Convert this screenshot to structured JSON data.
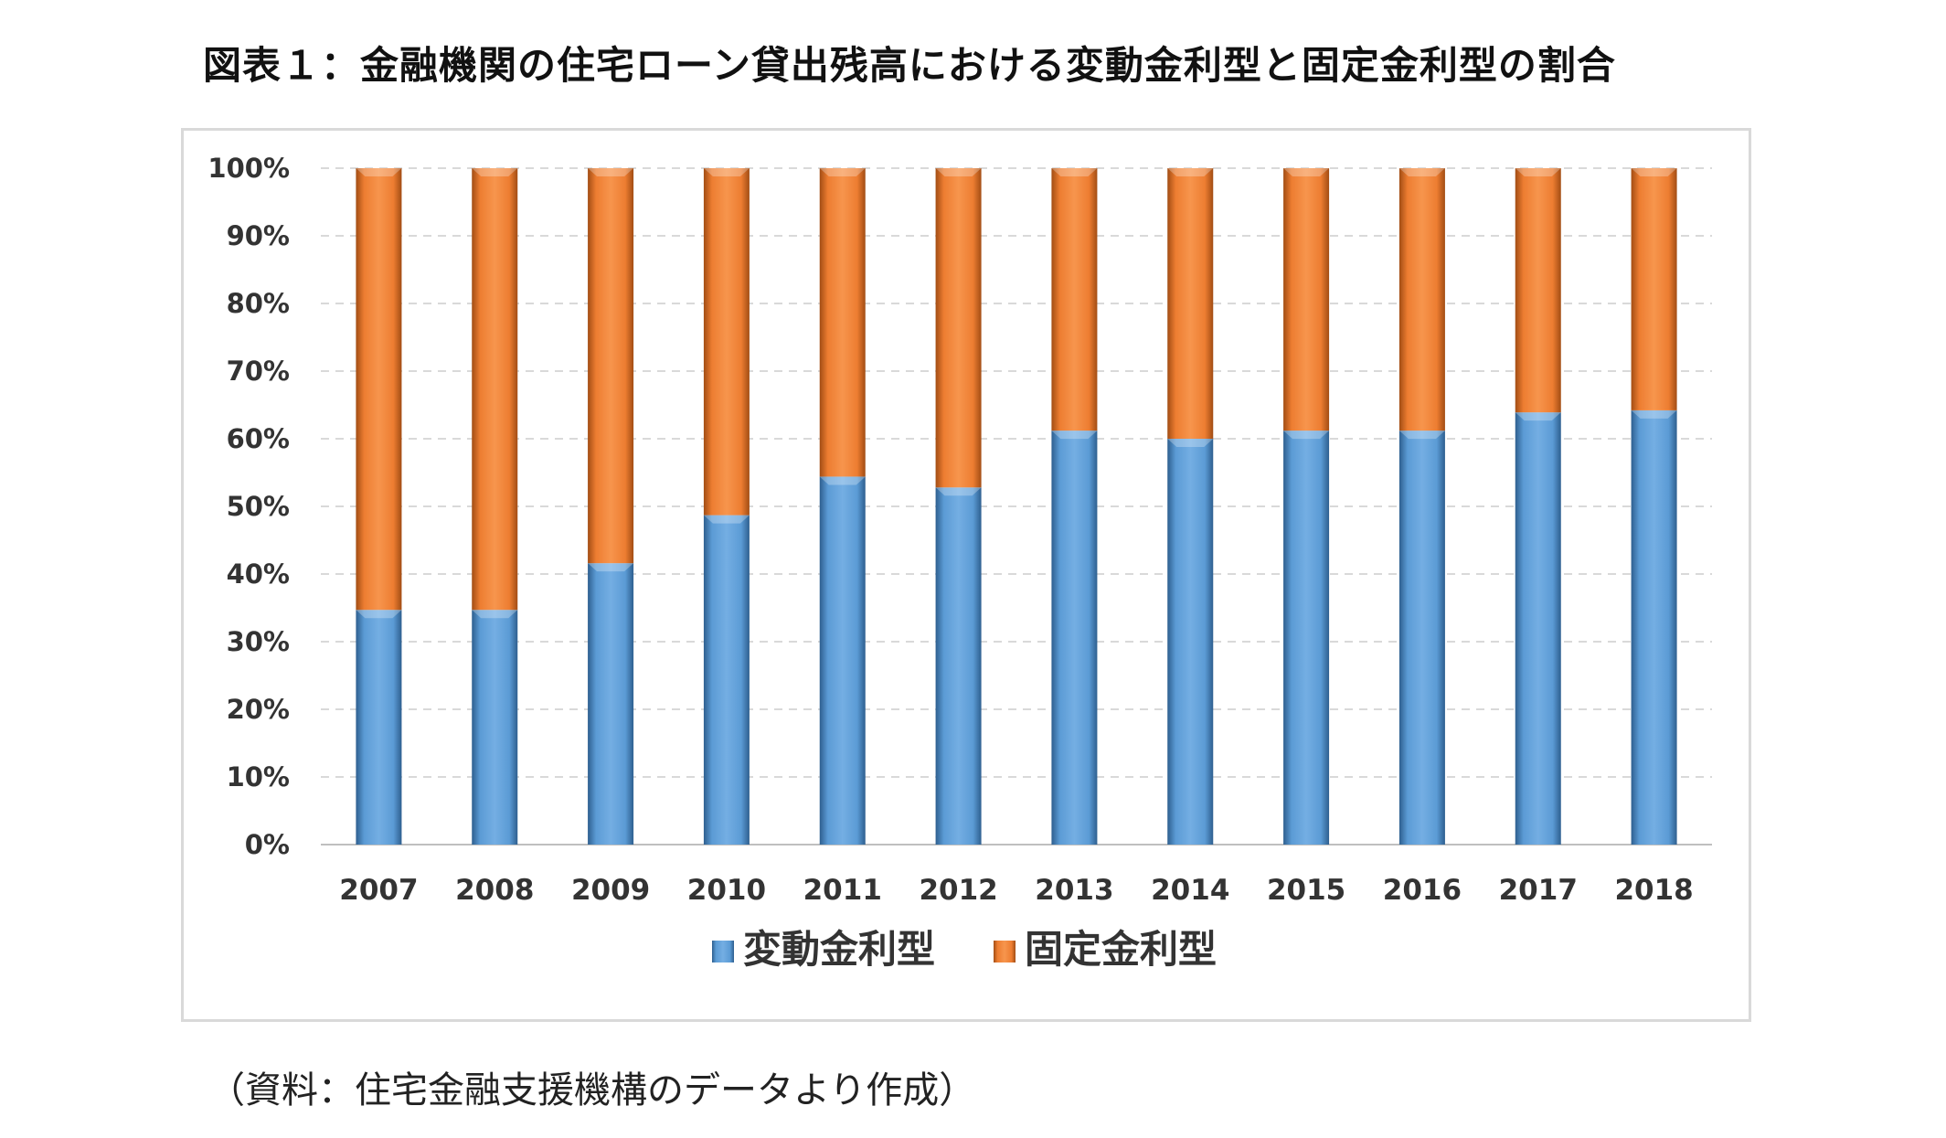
{
  "title": "図表１：金融機関の住宅ローン貸出残高における変動金利型と固定金利型の割合",
  "source": "（資料：住宅金融支援機構のデータより作成）",
  "colors": {
    "variable": "#5b9bd5",
    "fixed": "#ed7d31",
    "grid": "#d9d9d9",
    "axis": "#bfbfbf"
  },
  "chart_data": {
    "type": "bar",
    "stacked": true,
    "percent": true,
    "categories": [
      "2007",
      "2008",
      "2009",
      "2010",
      "2011",
      "2012",
      "2013",
      "2014",
      "2015",
      "2016",
      "2017",
      "2018"
    ],
    "series": [
      {
        "name": "変動金利型",
        "values": [
          34.7,
          34.7,
          41.6,
          48.7,
          54.4,
          52.8,
          61.2,
          60.0,
          61.2,
          61.2,
          63.9,
          64.2
        ]
      },
      {
        "name": "固定金利型",
        "values": [
          65.3,
          65.3,
          58.4,
          51.3,
          45.6,
          47.2,
          38.8,
          40.0,
          38.8,
          38.8,
          36.1,
          35.8
        ]
      }
    ],
    "yticks": [
      "0%",
      "10%",
      "20%",
      "30%",
      "40%",
      "50%",
      "60%",
      "70%",
      "80%",
      "90%",
      "100%"
    ],
    "ylim": [
      0,
      100
    ],
    "grid": true,
    "legend": "bottom-center"
  }
}
